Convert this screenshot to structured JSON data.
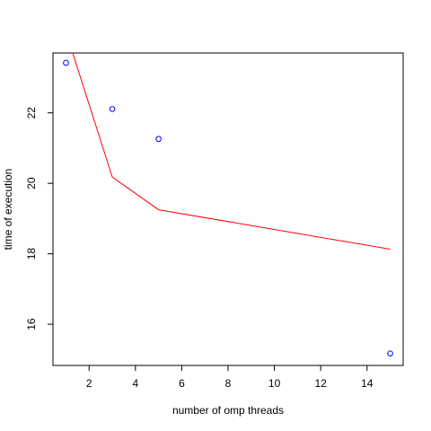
{
  "chart_data": {
    "type": "scatter",
    "xlabel": "number of omp threads",
    "ylabel": "time of execution",
    "xlim": [
      0.44,
      15.56
    ],
    "ylim": [
      14.83,
      23.7
    ],
    "xticks": [
      2,
      4,
      6,
      8,
      10,
      12,
      14
    ],
    "yticks": [
      16,
      18,
      20,
      22
    ],
    "grid": false,
    "legend": "none",
    "points": {
      "color": "#0000ff",
      "x": [
        1,
        3,
        5,
        15
      ],
      "y": [
        23.42,
        22.11,
        21.26,
        15.17
      ]
    },
    "fit_line": {
      "color": "#ff0000",
      "x": [
        1,
        3,
        5,
        15
      ],
      "y": [
        24.3,
        20.18,
        19.25,
        18.13
      ]
    }
  }
}
